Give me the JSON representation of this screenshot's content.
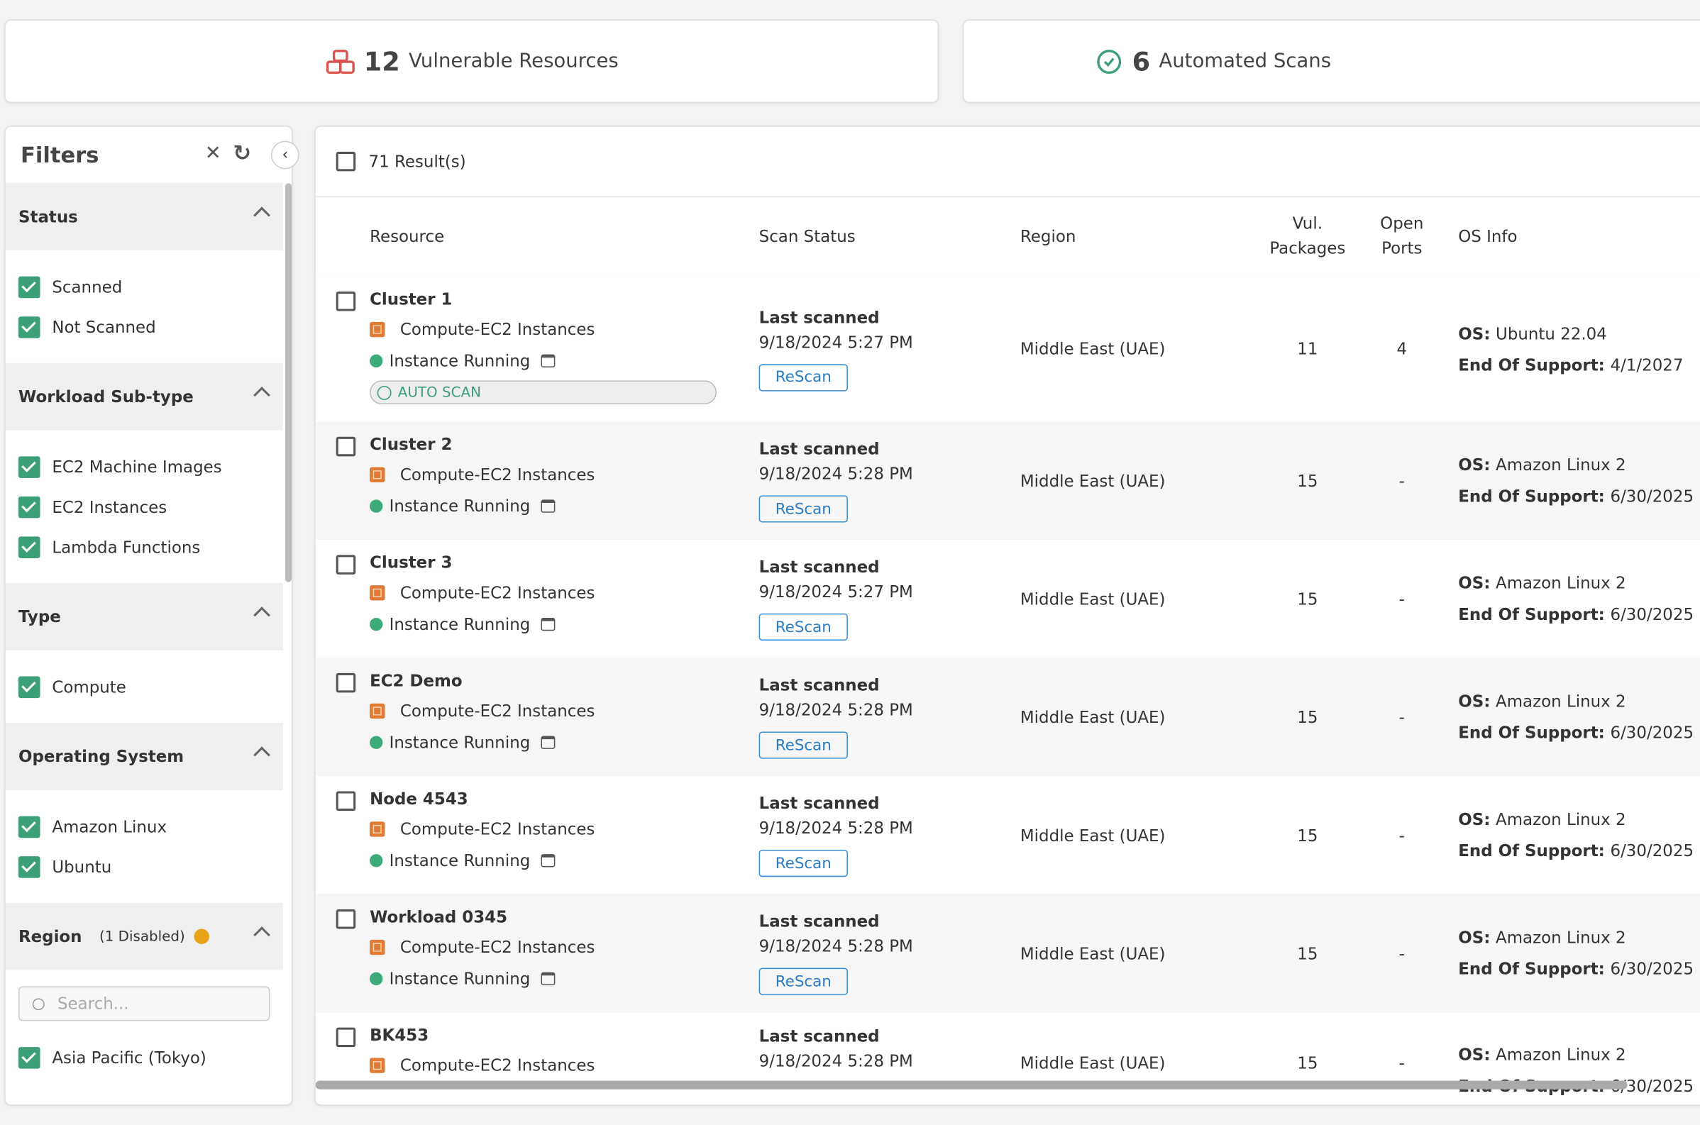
{
  "summary": [
    {
      "count": "12",
      "label": "Vulnerable Resources"
    },
    {
      "count": "6",
      "label": "Automated Scans"
    }
  ],
  "filters": {
    "title": "Filters",
    "groups": [
      {
        "title": "Status",
        "options": [
          "Scanned",
          "Not Scanned"
        ]
      },
      {
        "title": "Workload Sub-type",
        "options": [
          "EC2 Machine Images",
          "EC2 Instances",
          "Lambda Functions"
        ]
      },
      {
        "title": "Type",
        "options": [
          "Compute"
        ]
      },
      {
        "title": "Operating System",
        "options": [
          "Amazon Linux",
          "Ubuntu"
        ]
      },
      {
        "title": "Region",
        "note": "(1 Disabled)",
        "search": "Search...",
        "options": [
          "Asia Pacific (Tokyo)"
        ]
      }
    ]
  },
  "table": {
    "result_count": "71 Result(s)",
    "columns": [
      "Resource",
      "Scan Status",
      "Region",
      "Vul. Packages",
      "Open Ports",
      "OS Info"
    ],
    "os_label": "OS:",
    "eos_label": "End Of Support:",
    "rows": [
      {
        "resource": "Cluster 1",
        "type": "Compute-EC2 Instances",
        "state": "Instance Running",
        "auto_scan": "AUTO SCAN",
        "scan_label": "Last scanned",
        "scan_time": "9/18/2024 5:27 PM",
        "action": "ReScan",
        "region": "Middle East (UAE)",
        "vul_packages": "11",
        "open_ports": "4",
        "os": "Ubuntu 22.04",
        "eos": "4/1/2027"
      },
      {
        "resource": "Cluster 2",
        "type": "Compute-EC2 Instances",
        "state": "Instance Running",
        "scan_label": "Last scanned",
        "scan_time": "9/18/2024 5:28 PM",
        "action": "ReScan",
        "region": "Middle East (UAE)",
        "vul_packages": "15",
        "open_ports": "-",
        "os": "Amazon Linux 2",
        "eos": "6/30/2025"
      },
      {
        "resource": "Cluster 3",
        "type": "Compute-EC2 Instances",
        "state": "Instance Running",
        "scan_label": "Last scanned",
        "scan_time": "9/18/2024 5:27 PM",
        "action": "ReScan",
        "region": "Middle East (UAE)",
        "vul_packages": "15",
        "open_ports": "-",
        "os": "Amazon Linux 2",
        "eos": "6/30/2025"
      },
      {
        "resource": "EC2 Demo",
        "type": "Compute-EC2 Instances",
        "state": "Instance Running",
        "scan_label": "Last scanned",
        "scan_time": "9/18/2024 5:28 PM",
        "action": "ReScan",
        "region": "Middle East (UAE)",
        "vul_packages": "15",
        "open_ports": "-",
        "os": "Amazon Linux 2",
        "eos": "6/30/2025"
      },
      {
        "resource": "Node 4543",
        "type": "Compute-EC2 Instances",
        "state": "Instance Running",
        "scan_label": "Last scanned",
        "scan_time": "9/18/2024 5:28 PM",
        "action": "ReScan",
        "region": "Middle East (UAE)",
        "vul_packages": "15",
        "open_ports": "-",
        "os": "Amazon Linux 2",
        "eos": "6/30/2025"
      },
      {
        "resource": "Workload 0345",
        "type": "Compute-EC2 Instances",
        "state": "Instance Running",
        "scan_label": "Last scanned",
        "scan_time": "9/18/2024 5:28 PM",
        "action": "ReScan",
        "region": "Middle East (UAE)",
        "vul_packages": "15",
        "open_ports": "-",
        "os": "Amazon Linux 2",
        "eos": "6/30/2025"
      },
      {
        "resource": "BK453",
        "type": "Compute-EC2 Instances",
        "scan_label": "Last scanned",
        "scan_time": "9/18/2024 5:28 PM",
        "region": "Middle East (UAE)",
        "vul_packages": "15",
        "open_ports": "-",
        "os": "Amazon Linux 2",
        "eos": "6/30/2025"
      }
    ]
  }
}
